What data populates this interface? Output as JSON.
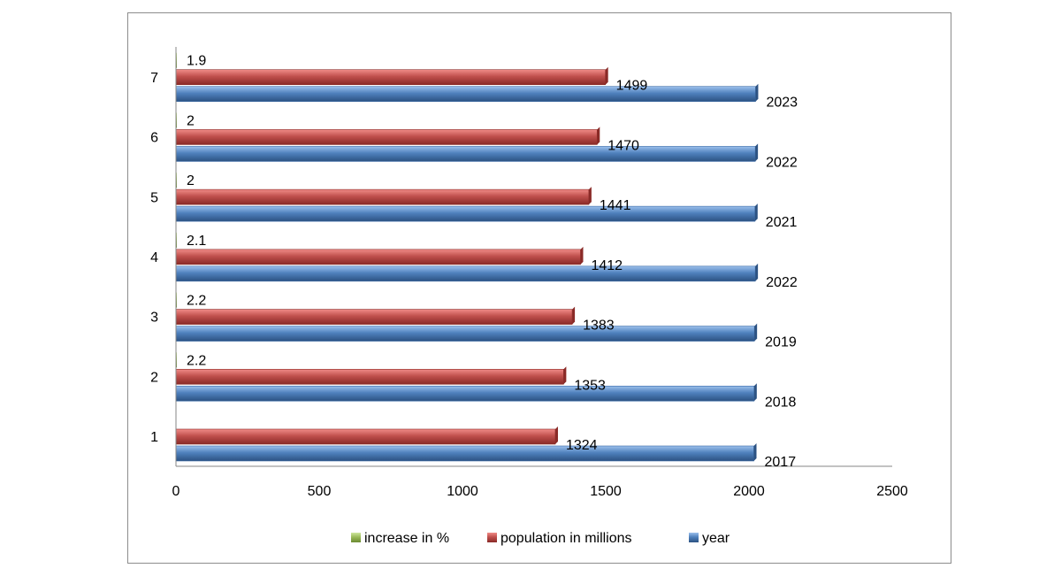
{
  "chart_data": {
    "type": "bar",
    "orientation": "horizontal",
    "categories": [
      "1",
      "2",
      "3",
      "4",
      "5",
      "6",
      "7"
    ],
    "series": [
      {
        "name": "year",
        "color": "#4f81bd",
        "values": [
          2017,
          2018,
          2019,
          2022,
          2021,
          2022,
          2023
        ]
      },
      {
        "name": "population in millions",
        "color": "#c0504d",
        "values": [
          1324,
          1353,
          1383,
          1412,
          1441,
          1470,
          1499
        ]
      },
      {
        "name": "increase in %",
        "color": "#9bbb59",
        "values": [
          null,
          2.2,
          2.2,
          2.1,
          2,
          2,
          1.9
        ]
      }
    ],
    "xlim": [
      0,
      2500
    ],
    "xticks": [
      "0",
      "500",
      "1000",
      "1500",
      "2000",
      "2500"
    ],
    "gridlines": false,
    "legend": {
      "position": "bottom",
      "entries": [
        "increase in %",
        "population in millions",
        "year"
      ]
    },
    "title": "",
    "xlabel": "",
    "ylabel": ""
  }
}
